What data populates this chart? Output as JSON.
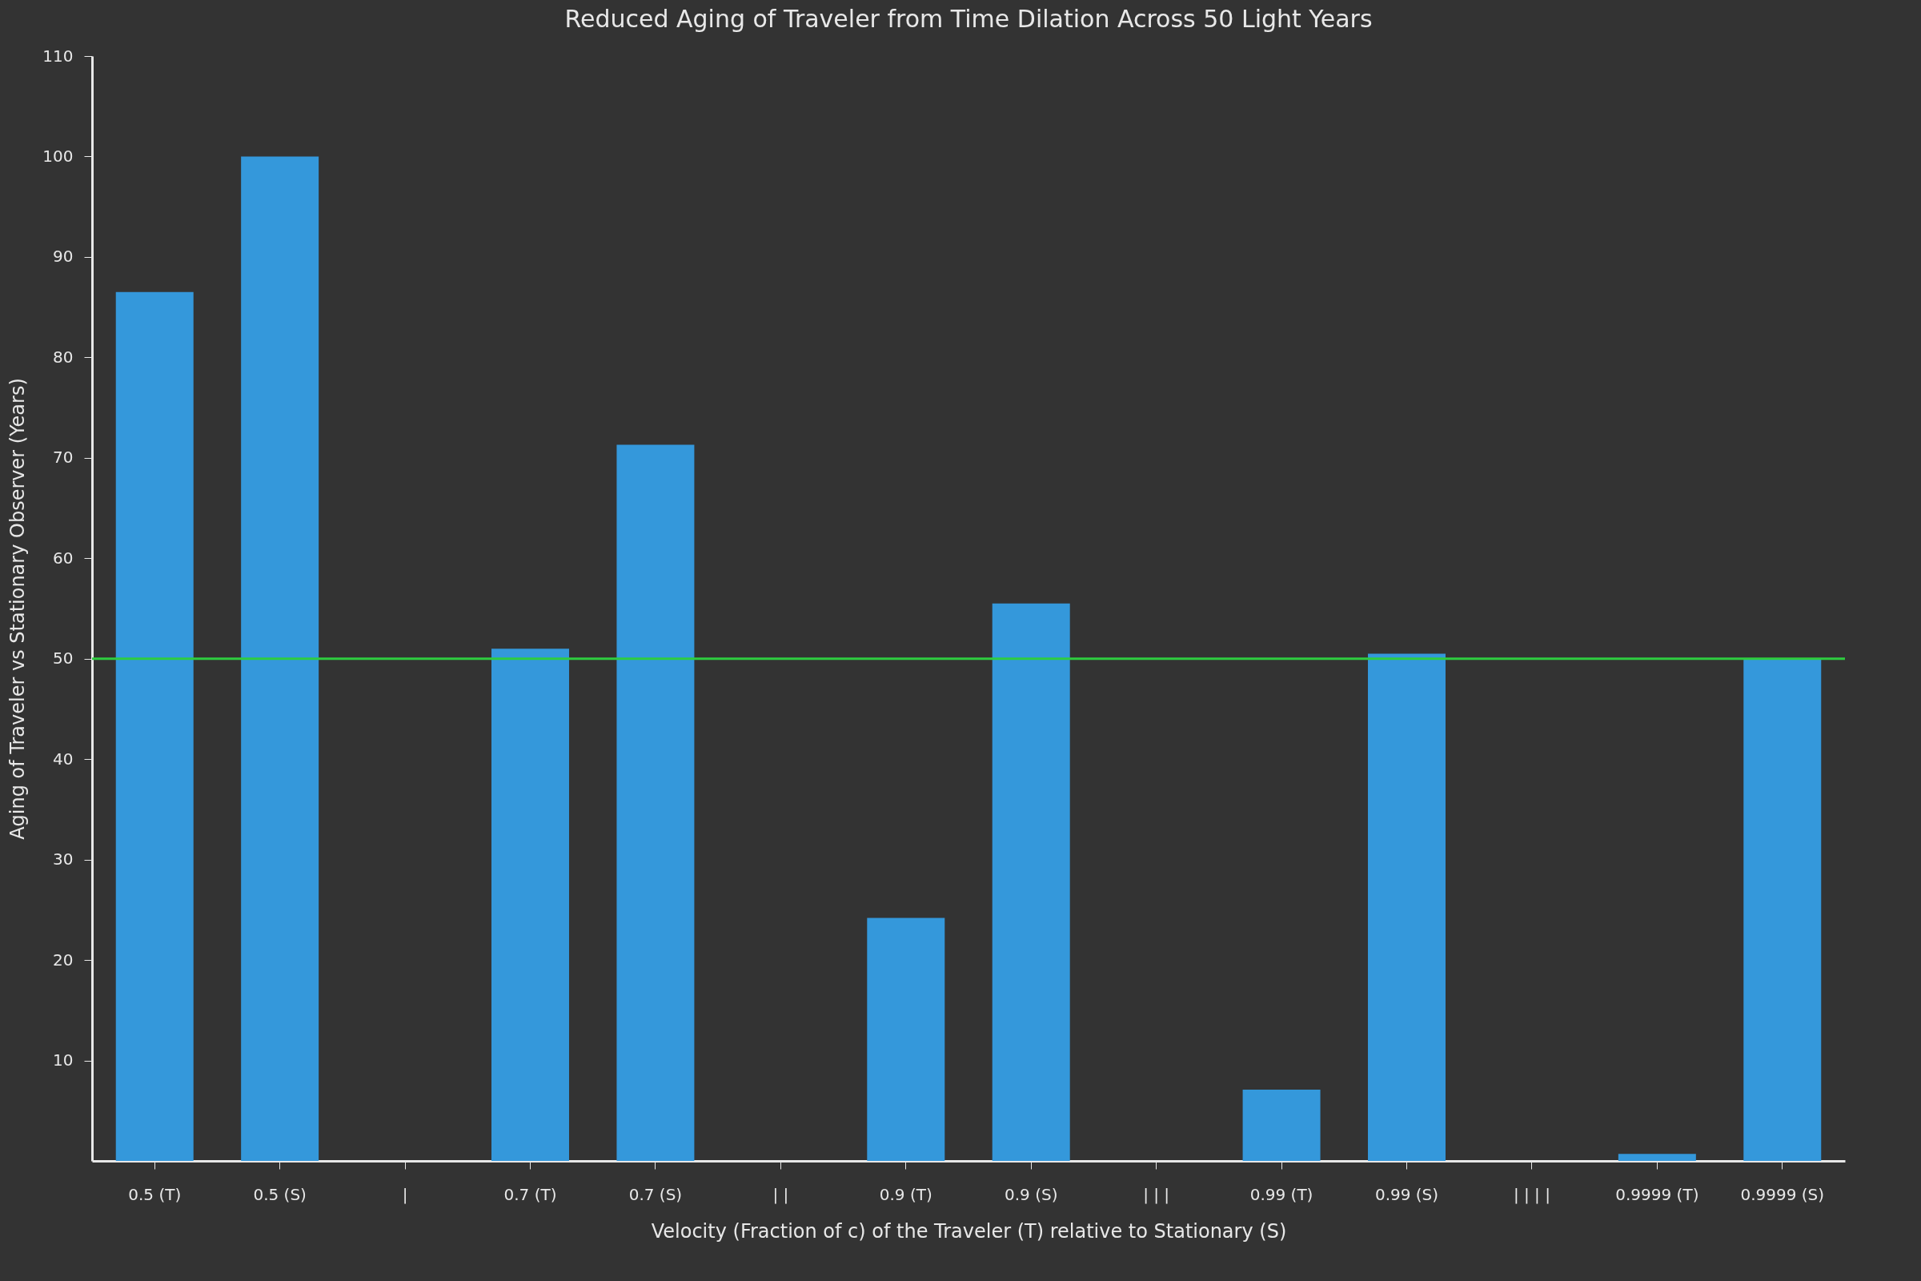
{
  "chart_data": {
    "type": "bar",
    "title": "Reduced Aging of Traveler from Time Dilation Across 50 Light Years",
    "xlabel": "Velocity (Fraction of c) of the Traveler (T) relative to Stationary (S)",
    "ylabel": "Aging of Traveler vs Stationary Observer (Years)",
    "categories": [
      "0.5 (T)",
      "0.5 (S)",
      "|",
      "0.7 (T)",
      "0.7 (S)",
      "| |",
      "0.9 (T)",
      "0.9 (S)",
      "| | |",
      "0.99 (T)",
      "0.99 (S)",
      "| | | |",
      "0.9999 (T)",
      "0.9999 (S)"
    ],
    "values": [
      86.5,
      100,
      null,
      51,
      71.3,
      null,
      24.2,
      55.5,
      null,
      7.1,
      50.5,
      null,
      0.7,
      50
    ],
    "color": "#3498db",
    "ylim": [
      0,
      110
    ],
    "yticks": [
      10,
      20,
      30,
      40,
      50,
      60,
      70,
      80,
      90,
      100,
      110
    ],
    "ref_lines": [
      {
        "axis": "y",
        "value": 50,
        "color": "#2ecc40"
      }
    ]
  }
}
